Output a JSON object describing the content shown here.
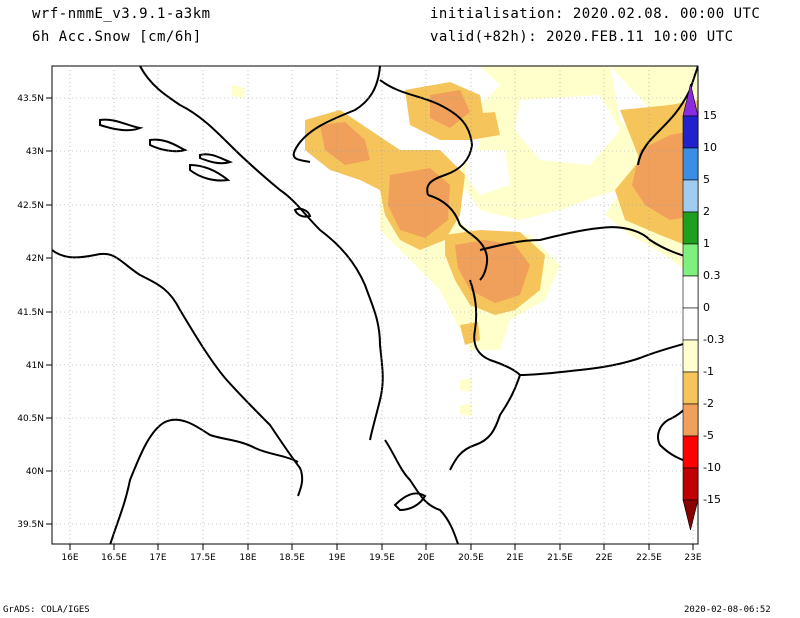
{
  "header": {
    "model": "wrf-nmmE_v3.9.1-a3km",
    "field": "6h Acc.Snow [cm/6h]",
    "init": "initialisation: 2020.02.08.  00:00 UTC",
    "valid": "valid(+82h): 2020.FEB.11 10:00 UTC"
  },
  "map": {
    "lat_labels": [
      "43.5N",
      "43N",
      "42.5N",
      "42N",
      "41.5N",
      "41N",
      "40.5N",
      "40N",
      "39.5N"
    ],
    "lon_labels": [
      "16E",
      "16.5E",
      "17E",
      "17.5E",
      "18E",
      "18.5E",
      "19E",
      "19.5E",
      "20E",
      "20.5E",
      "21E",
      "21.5E",
      "22E",
      "22.5E",
      "23E"
    ]
  },
  "colorbar": {
    "labels": [
      "15",
      "10",
      "5",
      "2",
      "1",
      "0.3",
      "0",
      "-0.3",
      "-1",
      "-2",
      "-5",
      "-10",
      "-15"
    ],
    "colors": [
      "#8a2be2",
      "#2222cc",
      "#3a8ee6",
      "#9fcdf2",
      "#1ea01e",
      "#7df07d",
      "#ffffff",
      "#ffffff",
      "#ffffd0",
      "#f5c45a",
      "#f0a05a",
      "#ff0000",
      "#c00000",
      "#880000"
    ]
  },
  "footer": {
    "left": "GrADS: COLA/IGES",
    "right": "2020-02-08-06:52"
  }
}
